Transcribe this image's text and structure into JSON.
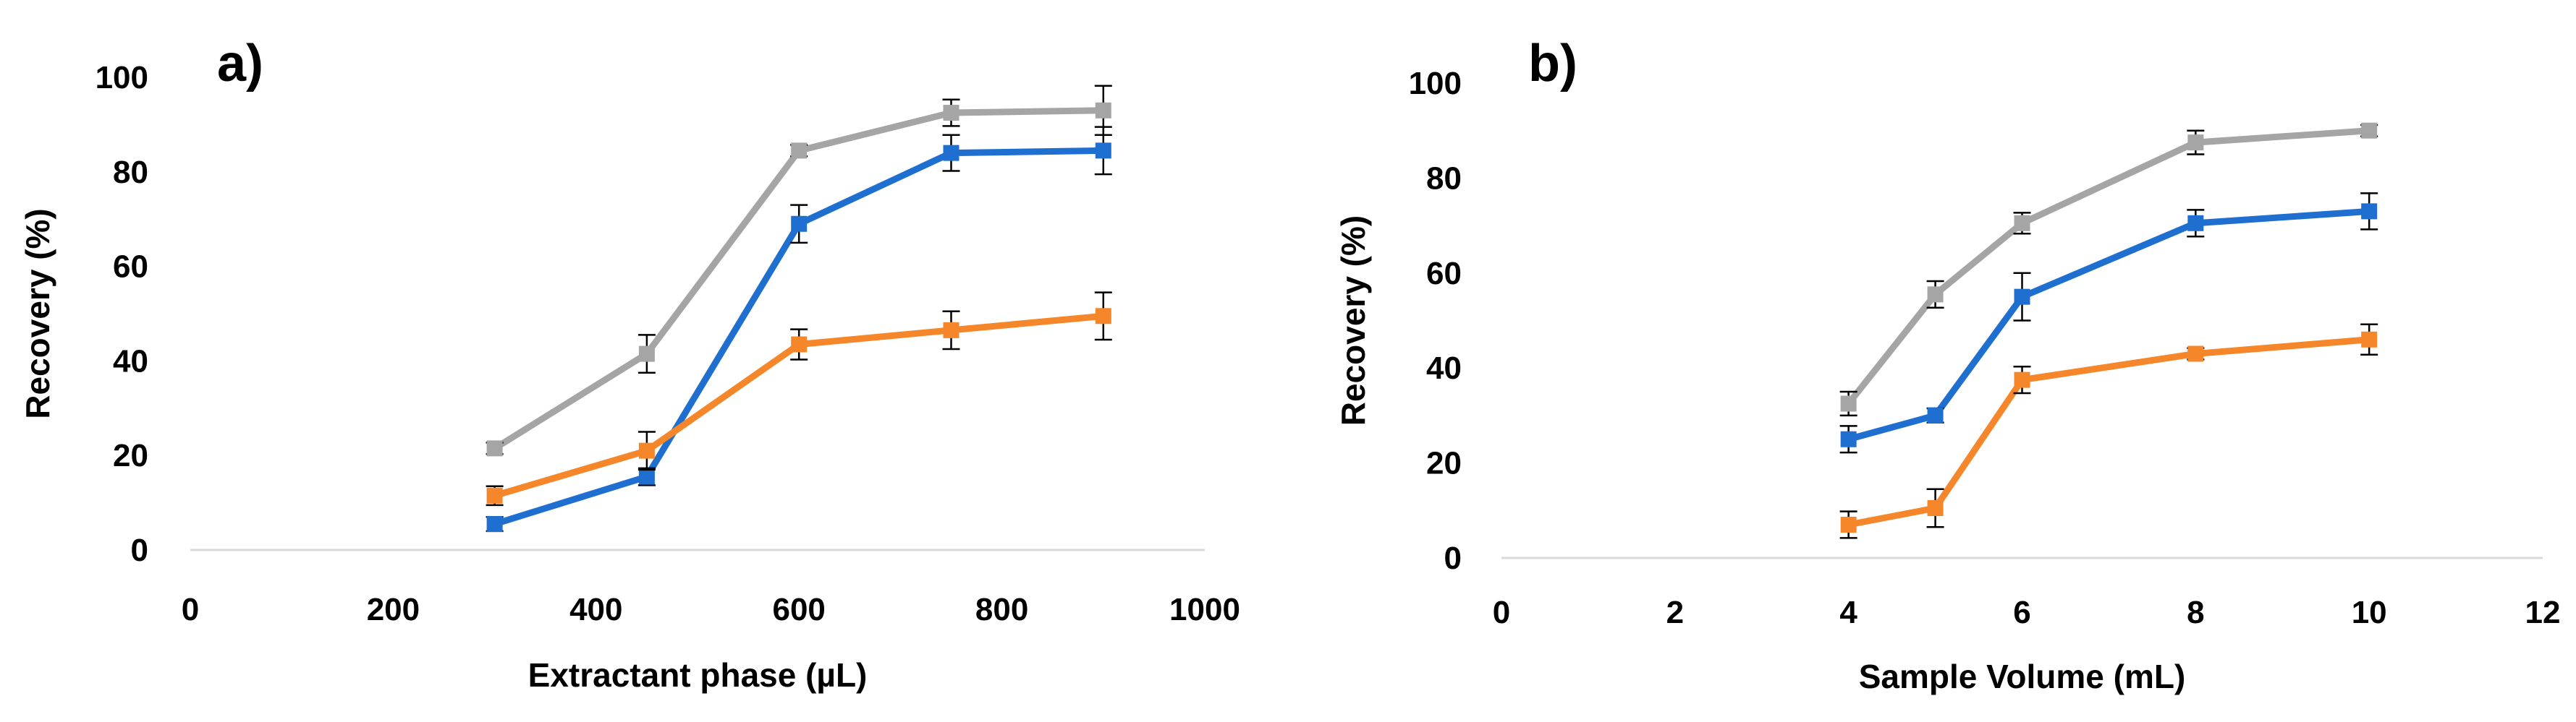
{
  "chart_data": [
    {
      "type": "line",
      "panel_label": "a)",
      "title": "",
      "xlabel": "Extractant phase (µL)",
      "ylabel": "Recovery (%)",
      "xlim": [
        0,
        1000
      ],
      "ylim": [
        0,
        100
      ],
      "xticks": [
        "0",
        "200",
        "400",
        "600",
        "800",
        "1000"
      ],
      "yticks": [
        "0",
        "20",
        "40",
        "60",
        "80",
        "100"
      ],
      "grid": false,
      "legend": "none",
      "x": [
        300,
        450,
        600,
        750,
        900
      ],
      "series": [
        {
          "name": "gray",
          "color": "#A5A5A5",
          "values": [
            21.5,
            41.5,
            84.5,
            92.5,
            93
          ],
          "errors": [
            1.2,
            4,
            1.2,
            2.8,
            5.2
          ]
        },
        {
          "name": "blue",
          "color": "#1F6FD0",
          "values": [
            5.5,
            15.5,
            69,
            84,
            84.5
          ],
          "errors": [
            1.5,
            1.8,
            4,
            3.8,
            5
          ]
        },
        {
          "name": "orange",
          "color": "#F5862A",
          "values": [
            11.5,
            21,
            43.5,
            46.5,
            49.5
          ],
          "errors": [
            2,
            4,
            3.2,
            4,
            5
          ]
        }
      ]
    },
    {
      "type": "line",
      "panel_label": "b)",
      "title": "",
      "xlabel": "Sample Volume (mL)",
      "ylabel": "Recovery (%)",
      "xlim": [
        0,
        12
      ],
      "ylim": [
        0,
        100
      ],
      "xticks": [
        "0",
        "2",
        "4",
        "6",
        "8",
        "10",
        "12"
      ],
      "yticks": [
        "0",
        "20",
        "40",
        "60",
        "80",
        "100"
      ],
      "grid": false,
      "legend": "none",
      "x": [
        4,
        5,
        6,
        8,
        10
      ],
      "series": [
        {
          "name": "gray",
          "color": "#A5A5A5",
          "values": [
            32.5,
            55.5,
            70.5,
            87.5,
            90
          ],
          "errors": [
            2.5,
            2.8,
            2.2,
            2.5,
            1.2
          ]
        },
        {
          "name": "blue",
          "color": "#1F6FD0",
          "values": [
            25,
            30,
            55,
            70.5,
            73
          ],
          "errors": [
            2.8,
            1.5,
            5,
            2.8,
            3.8
          ]
        },
        {
          "name": "orange",
          "color": "#F5862A",
          "values": [
            7,
            10.5,
            37.5,
            43,
            46
          ],
          "errors": [
            2.8,
            4,
            2.8,
            1.2,
            3.2
          ]
        }
      ]
    }
  ]
}
